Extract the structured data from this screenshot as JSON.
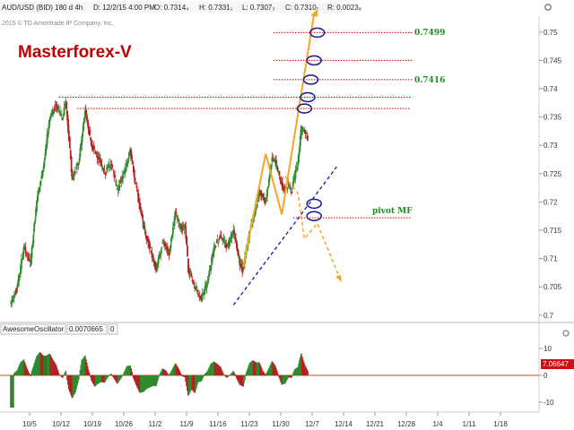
{
  "header": {
    "symbol": "AUD/USD (BID) 180 d 4h",
    "date": "D: 12/2/15 4:00 PM",
    "open": "O: 0.7314₄",
    "high": "H: 0.7331₁",
    "low": "L: 0.7307₃",
    "close": "C: 0.7310₇",
    "range": "R: 0.0023₈"
  },
  "copyright": "2015 © TD Ameritrade IP Company, Inc.",
  "brand": "Masterforex-V",
  "annotations": {
    "level_upper": "0.7499",
    "level_lower": "0.7416",
    "pivot": "pivot MF"
  },
  "colors": {
    "bull": "#2e8b2e",
    "bear": "#b22222",
    "level_line": "#d40000",
    "projection": "#f5a623",
    "trendline": "#1a1a99",
    "circle": "#1a1a99",
    "osc_value_bg": "#d01010",
    "zero_line": "#c05020"
  },
  "chart_data": [
    {
      "type": "candlestick",
      "title": "",
      "x_ticks": [
        "10/5",
        "10/12",
        "10/19",
        "10/26",
        "11/2",
        "11/9",
        "11/16",
        "11/23",
        "11/30",
        "12/7",
        "12/14",
        "12/21",
        "12/28",
        "1/4",
        "1/11",
        "1/18"
      ],
      "y_ticks": [
        "0.7",
        "0.705",
        "0.71",
        "0.715",
        "0.72",
        "0.725",
        "0.73",
        "0.735",
        "0.74",
        "0.745",
        "0.75"
      ],
      "ylim": [
        0.6995,
        0.7525
      ],
      "price_path": [
        [
          -2,
          0.703
        ],
        [
          0,
          0.702
        ],
        [
          2,
          0.705
        ],
        [
          4,
          0.712
        ],
        [
          6,
          0.709
        ],
        [
          8,
          0.72
        ],
        [
          10,
          0.726
        ],
        [
          12,
          0.735
        ],
        [
          14,
          0.737
        ],
        [
          16,
          0.735
        ],
        [
          17,
          0.738
        ],
        [
          19,
          0.724
        ],
        [
          21,
          0.727
        ],
        [
          23,
          0.736
        ],
        [
          25,
          0.73
        ],
        [
          27,
          0.728
        ],
        [
          29,
          0.725
        ],
        [
          31,
          0.727
        ],
        [
          33,
          0.722
        ],
        [
          35,
          0.725
        ],
        [
          37,
          0.729
        ],
        [
          39,
          0.722
        ],
        [
          41,
          0.716
        ],
        [
          43,
          0.712
        ],
        [
          45,
          0.708
        ],
        [
          47,
          0.713
        ],
        [
          49,
          0.711
        ],
        [
          51,
          0.718
        ],
        [
          53,
          0.715
        ],
        [
          54,
          0.716
        ],
        [
          55,
          0.708
        ],
        [
          57,
          0.705
        ],
        [
          59,
          0.703
        ],
        [
          61,
          0.706
        ],
        [
          63,
          0.712
        ],
        [
          65,
          0.714
        ],
        [
          67,
          0.712
        ],
        [
          69,
          0.715
        ],
        [
          71,
          0.709
        ],
        [
          72,
          0.708
        ],
        [
          74,
          0.715
        ],
        [
          76,
          0.719
        ],
        [
          77,
          0.722
        ],
        [
          79,
          0.72
        ],
        [
          81,
          0.728
        ],
        [
          82,
          0.727
        ],
        [
          84,
          0.723
        ],
        [
          85,
          0.722
        ],
        [
          86,
          0.723
        ],
        [
          87,
          0.722
        ],
        [
          89,
          0.727
        ],
        [
          90,
          0.733
        ],
        [
          91,
          0.7325
        ],
        [
          92,
          0.731
        ]
      ],
      "levels": [
        0.7499,
        0.745,
        0.7416,
        0.7385,
        0.7365,
        0.7172
      ],
      "projection_up": [
        [
          72,
          0.7085
        ],
        [
          79,
          0.7285
        ],
        [
          84,
          0.7178
        ],
        [
          94,
          0.7532
        ]
      ],
      "projection_down": [
        [
          85,
          0.7245
        ],
        [
          89,
          0.7215
        ],
        [
          91,
          0.7135
        ],
        [
          95,
          0.7162
        ],
        [
          102,
          0.7065
        ]
      ],
      "trendline": [
        [
          69,
          0.7018
        ],
        [
          101,
          0.7262
        ]
      ],
      "circles": [
        [
          95,
          0.7499
        ],
        [
          94,
          0.745
        ],
        [
          93,
          0.7416
        ],
        [
          92,
          0.7385
        ],
        [
          91,
          0.7365
        ],
        [
          94,
          0.7197
        ],
        [
          94,
          0.7175
        ]
      ]
    },
    {
      "type": "bar",
      "title": "AwesomeOscillator",
      "series": [
        {
          "name": "AwesomeOscillator",
          "values": []
        }
      ],
      "value_box": "0.0070665",
      "last_value": "7.06647",
      "extra_value": "0",
      "y_ticks": [
        "10",
        "0",
        "-10"
      ],
      "ylim": [
        -12,
        12
      ]
    }
  ]
}
